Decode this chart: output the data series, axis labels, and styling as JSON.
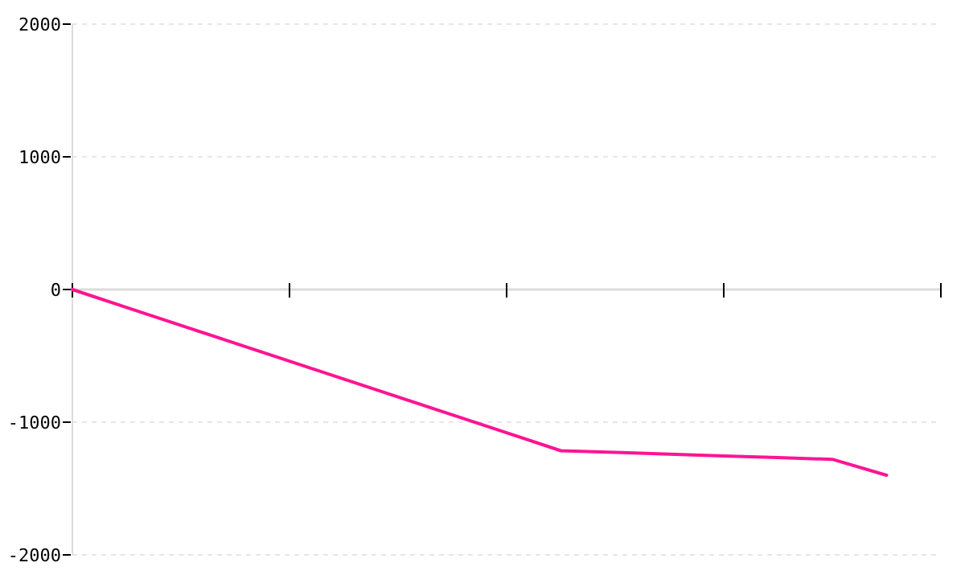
{
  "chart_data": {
    "type": "line",
    "categories": [
      null,
      null,
      null,
      null,
      null,
      null,
      null,
      null,
      null,
      null,
      null,
      null,
      null,
      null,
      null,
      null,
      null
    ],
    "series": [
      {
        "color": "#ff1493",
        "values": [
          0,
          -135,
          -270,
          -405,
          -540,
          -675,
          -810,
          -945,
          -1080,
          -1215,
          -1228,
          -1241,
          -1254,
          -1267,
          -1280,
          -1400,
          null
        ]
      }
    ],
    "ylim": [
      -2000,
      2000
    ],
    "yticks": [
      -2000,
      -1000,
      0,
      1000,
      2000
    ],
    "grid": "y",
    "marker": "none",
    "line_style": "solid"
  }
}
